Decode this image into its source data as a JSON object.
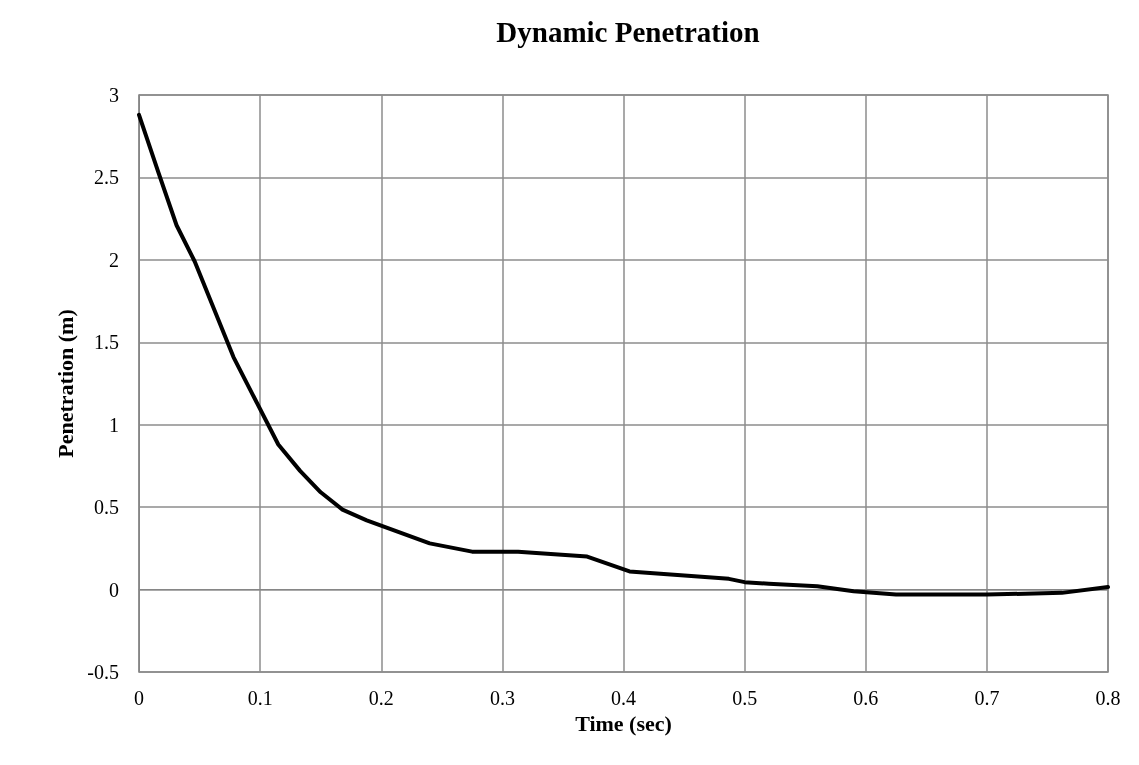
{
  "chart_data": {
    "type": "line",
    "title": "Dynamic Penetration",
    "xlabel": "Time (sec)",
    "ylabel": "Penetration (m)",
    "x": [
      0,
      0.016,
      0.031,
      0.046,
      0.078,
      0.115,
      0.133,
      0.15,
      0.168,
      0.188,
      0.24,
      0.275,
      0.313,
      0.37,
      0.405,
      0.487,
      0.5,
      0.52,
      0.56,
      0.59,
      0.625,
      0.7,
      0.762,
      0.8
    ],
    "series": [
      {
        "color": "#000000",
        "values": [
          2.88,
          2.53,
          2.21,
          1.99,
          1.41,
          0.88,
          0.72,
          0.59,
          0.485,
          0.42,
          0.28,
          0.23,
          0.23,
          0.2,
          0.11,
          0.065,
          0.045,
          0.035,
          0.02,
          -0.01,
          -0.03,
          -0.03,
          -0.02,
          0.015
        ]
      }
    ],
    "xlim": [
      0,
      0.8
    ],
    "xticks": [
      0,
      0.1,
      0.2,
      0.3,
      0.4,
      0.5,
      0.6,
      0.7,
      0.8
    ],
    "ylim": [
      -0.5,
      3
    ],
    "yticks": [
      -0.5,
      0,
      0.5,
      1,
      1.5,
      2,
      2.5,
      3
    ],
    "grid": true,
    "marker": "none",
    "line_style": "solid"
  }
}
